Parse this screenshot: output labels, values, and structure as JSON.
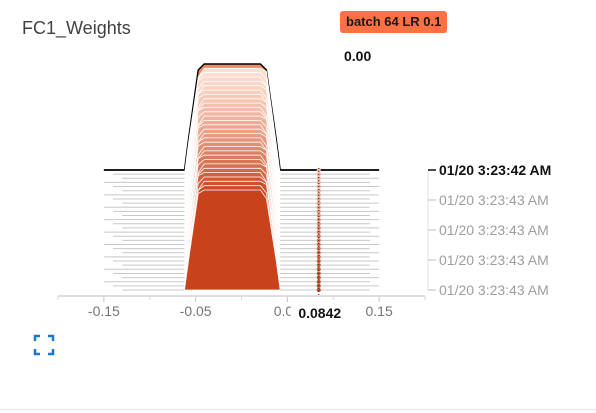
{
  "card": {
    "title": "FC1_Weights"
  },
  "run": {
    "label": "batch 64 LR 0.1",
    "color": "#ff7043"
  },
  "hover": {
    "value_label": "0.00",
    "x_label": "0.0842",
    "x_value": 0.0842
  },
  "expand_icon": "fullscreen-icon",
  "chart_data": {
    "type": "area",
    "mode": "offset",
    "x_ticks": [
      -0.15,
      -0.05,
      0.05,
      0.15
    ],
    "x_tick_labels": [
      "-0.15",
      "-0.05",
      "0.05",
      "0.15"
    ],
    "xlim": [
      -0.2,
      0.2
    ],
    "y_tick_labels": [
      "01/20 3:23:42 AM",
      "01/20 3:23:43 AM",
      "01/20 3:23:43 AM",
      "01/20 3:23:43 AM",
      "01/20 3:23:43 AM"
    ],
    "highlighted_tick": 0,
    "steps": 30,
    "distribution": {
      "low": -0.06,
      "high": 0.04,
      "ramp": 0.015
    },
    "colors": {
      "front": "#c8421c",
      "back": "#fde0d2",
      "outline": "#000000",
      "tail": "#c8c8c8"
    }
  }
}
